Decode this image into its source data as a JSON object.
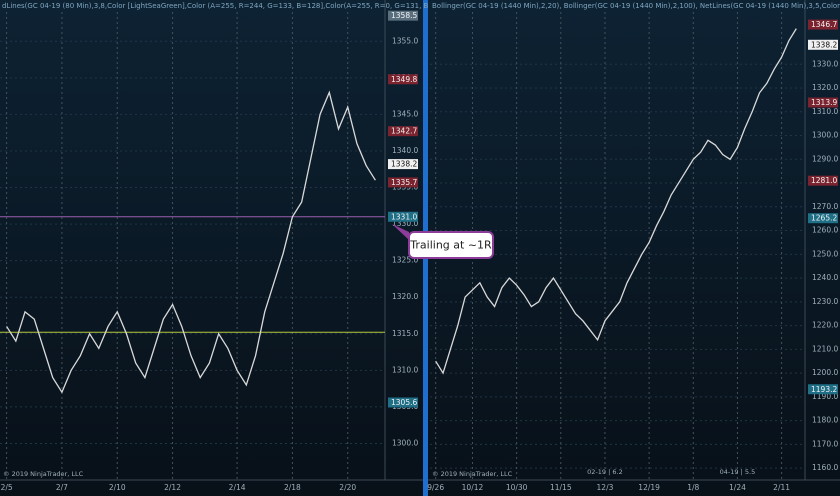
{
  "chart_data": [
    {
      "type": "line",
      "title": "dLines(GC 04-19 (80 Min),3,8,Color [LightSeaGreen],Color (A=255, R=244, G=133, B=128],Color(A=255, R=0, G=131, B",
      "footer": "© 2019 NinjaTrader, LLC",
      "annotation": "Trailing at ~1R",
      "categories": [
        "2/5",
        null,
        null,
        null,
        null,
        null,
        "2/7",
        null,
        null,
        null,
        null,
        null,
        "2/10",
        null,
        null,
        null,
        null,
        null,
        "2/12",
        null,
        null,
        null,
        null,
        null,
        null,
        "2/14",
        null,
        null,
        null,
        null,
        null,
        "2/18",
        null,
        null,
        null,
        null,
        null,
        "2/20",
        null,
        null,
        null
      ],
      "values": [
        1316,
        1314,
        1318,
        1317,
        1313,
        1309,
        1307,
        1310,
        1312,
        1315,
        1313,
        1316,
        1318,
        1315,
        1311,
        1309,
        1313,
        1317,
        1319,
        1316,
        1312,
        1309,
        1311,
        1315,
        1313,
        1310,
        1308,
        1312,
        1318,
        1322,
        1326,
        1331,
        1333,
        1339,
        1345,
        1348,
        1343,
        1346,
        1341,
        1338,
        1336
      ],
      "color": "#d9d9d9",
      "ylim": [
        1295,
        1359
      ],
      "yticks": [
        {
          "value": 1300,
          "label": "1300.0"
        },
        {
          "value": 1305,
          "label": "1305.0"
        },
        {
          "value": 1310,
          "label": "1310.0"
        },
        {
          "value": 1315,
          "label": "1315.0"
        },
        {
          "value": 1320,
          "label": "1320.0"
        },
        {
          "value": 1325,
          "label": "1325.0"
        },
        {
          "value": 1330,
          "label": "1330.0"
        },
        {
          "value": 1335,
          "label": "1335.0"
        },
        {
          "value": 1340,
          "label": "1340.0"
        },
        {
          "value": 1345,
          "label": "1345.0"
        },
        {
          "value": 1350,
          "label": "1350.0"
        },
        {
          "value": 1355,
          "label": "1355.0"
        }
      ],
      "grid": true,
      "hlines": [
        {
          "value": 1315.2,
          "color": "#b5c83a"
        },
        {
          "value": 1331,
          "color": "#9a5fae"
        }
      ],
      "markers": [
        {
          "value": 1358.5,
          "color": "#5a6f7d"
        },
        {
          "value": 1349.8,
          "color": "#7b2430"
        },
        {
          "value": 1342.7,
          "color": "#7b2430"
        },
        {
          "value": 1338.2,
          "color": "#f0f0f0"
        },
        {
          "value": 1335.7,
          "color": "#7b2430"
        },
        {
          "value": 1331,
          "label": "1331.0",
          "color": "#1f6f86"
        },
        {
          "value": 1305.6,
          "color": "#1f6f86"
        }
      ]
    },
    {
      "type": "line",
      "title": "Bollinger(GC 04-19 (1440 Min),2,20), Bollinger(GC 04-19 (1440 Min),2,100), NetLines(GC 04-19 (1440 Min),3,5,Color",
      "footer": "© 2019 NinjaTrader, LLC",
      "annotations": [
        "02-19 | 6.2",
        "04-19 | 5.5"
      ],
      "categories": [
        "9/26",
        null,
        null,
        null,
        null,
        "10/12",
        null,
        null,
        null,
        null,
        null,
        "10/30",
        null,
        null,
        null,
        null,
        null,
        "11/15",
        null,
        null,
        null,
        null,
        null,
        "12/3",
        null,
        null,
        null,
        null,
        null,
        "12/19",
        null,
        null,
        null,
        null,
        null,
        "1/8",
        null,
        null,
        null,
        null,
        null,
        "1/24",
        null,
        null,
        null,
        null,
        null,
        "2/11",
        null,
        null
      ],
      "values": [
        1205,
        1200,
        1210,
        1220,
        1232,
        1235,
        1238,
        1232,
        1228,
        1236,
        1240,
        1237,
        1233,
        1228,
        1230,
        1236,
        1240,
        1235,
        1230,
        1225,
        1222,
        1218,
        1214,
        1222,
        1226,
        1230,
        1238,
        1244,
        1250,
        1255,
        1262,
        1268,
        1275,
        1280,
        1285,
        1290,
        1293,
        1298,
        1296,
        1292,
        1290,
        1295,
        1303,
        1310,
        1318,
        1322,
        1328,
        1333,
        1340,
        1345
      ],
      "color": "#d9d9d9",
      "ylim": [
        1155,
        1352
      ],
      "yticks": [
        {
          "value": 1160,
          "label": "1160.0"
        },
        {
          "value": 1170,
          "label": "1170.0"
        },
        {
          "value": 1180,
          "label": "1180.0"
        },
        {
          "value": 1190,
          "label": "1190.0"
        },
        {
          "value": 1200,
          "label": "1200.0"
        },
        {
          "value": 1210,
          "label": "1210.0"
        },
        {
          "value": 1220,
          "label": "1220.0"
        },
        {
          "value": 1230,
          "label": "1230.0"
        },
        {
          "value": 1240,
          "label": "1240.0"
        },
        {
          "value": 1250,
          "label": "1250.0"
        },
        {
          "value": 1260,
          "label": "1260.0"
        },
        {
          "value": 1270,
          "label": "1270.0"
        },
        {
          "value": 1280,
          "label": "1280.0"
        },
        {
          "value": 1290,
          "label": "1290.0"
        },
        {
          "value": 1300,
          "label": "1300.0"
        },
        {
          "value": 1310,
          "label": "1310.0"
        },
        {
          "value": 1320,
          "label": "1320.0"
        },
        {
          "value": 1330,
          "label": "1330.0"
        }
      ],
      "grid": true,
      "markers": [
        {
          "value": 1346.7,
          "color": "#7b2430"
        },
        {
          "value": 1338.2,
          "color": "#f0f0f0"
        },
        {
          "value": 1313.9,
          "color": "#7b2430"
        },
        {
          "value": 1281,
          "label": "1281.0",
          "color": "#7b2430"
        },
        {
          "value": 1265.2,
          "color": "#1f6f86"
        },
        {
          "value": 1193.2,
          "color": "#1f6f86"
        }
      ]
    }
  ]
}
